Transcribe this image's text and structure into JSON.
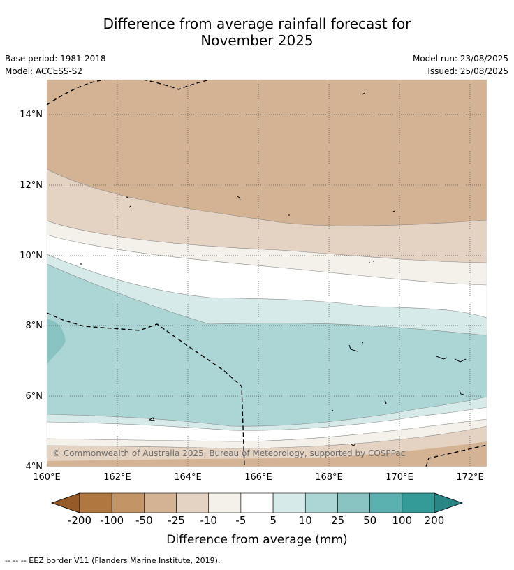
{
  "title_line1": "Difference from average rainfall forecast for",
  "title_line2": "November 2025",
  "base_period": "Base period: 1981-2018",
  "model": "Model: ACCESS-S2",
  "model_run": "Model run: 23/08/2025",
  "issued": "Issued: 25/08/2025",
  "copyright": "© Commonwealth of Australia 2025, Bureau of Meteorology, supported by COSPPac",
  "lon_labels": [
    "160°E",
    "162°E",
    "164°E",
    "166°E",
    "168°E",
    "170°E",
    "172°E"
  ],
  "lat_labels": [
    "14°N",
    "12°N",
    "10°N",
    "8°N",
    "6°N",
    "4°N"
  ],
  "colorbar": {
    "ticks": [
      "-200",
      "-100",
      "-50",
      "-25",
      "-10",
      "-5",
      "5",
      "10",
      "25",
      "50",
      "100",
      "200"
    ],
    "colors": [
      "#b07840",
      "#c29466",
      "#d3b393",
      "#e4d2c2",
      "#f4f0ea",
      "#ffffff",
      "#d6ebe9",
      "#acd6d5",
      "#88c3c1",
      "#5ab1af",
      "#349b98"
    ],
    "low_extend_color": "#965a28",
    "high_extend_color": "#2a8585",
    "label": "Difference from average (mm)"
  },
  "footnote": "--  --  -- EEZ border V11 (Flanders Marine Institute, 2019)."
}
